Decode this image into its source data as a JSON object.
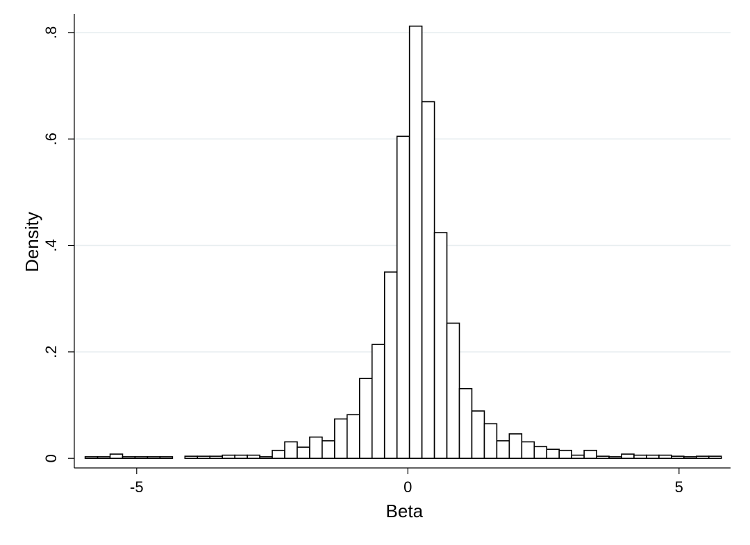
{
  "chart_data": {
    "type": "bar",
    "subtype": "histogram",
    "xlabel": "Beta",
    "ylabel": "Density",
    "xlim": [
      -6.15,
      5.95
    ],
    "ylim": [
      -0.018,
      0.835
    ],
    "x_ticks": [
      {
        "value": -5,
        "label": "-5"
      },
      {
        "value": 0,
        "label": "0"
      },
      {
        "value": 5,
        "label": "5"
      }
    ],
    "y_ticks": [
      {
        "value": 0,
        "label": "0"
      },
      {
        "value": 0.2,
        "label": ".2"
      },
      {
        "value": 0.4,
        "label": ".4"
      },
      {
        "value": 0.6,
        "label": ".6"
      },
      {
        "value": 0.8,
        "label": ".8"
      }
    ],
    "grid": "horizontal",
    "bin_width": 0.23,
    "bars": [
      {
        "x0": -5.95,
        "value": 0.003
      },
      {
        "x0": -5.72,
        "value": 0.003
      },
      {
        "x0": -5.49,
        "value": 0.008
      },
      {
        "x0": -5.26,
        "value": 0.003
      },
      {
        "x0": -5.03,
        "value": 0.003
      },
      {
        "x0": -4.8,
        "value": 0.003
      },
      {
        "x0": -4.57,
        "value": 0.003
      },
      {
        "x0": -4.34,
        "value": 0.0
      },
      {
        "x0": -4.11,
        "value": 0.004
      },
      {
        "x0": -3.88,
        "value": 0.004
      },
      {
        "x0": -3.65,
        "value": 0.004
      },
      {
        "x0": -3.42,
        "value": 0.006
      },
      {
        "x0": -3.19,
        "value": 0.006
      },
      {
        "x0": -2.96,
        "value": 0.006
      },
      {
        "x0": -2.73,
        "value": 0.003
      },
      {
        "x0": -2.5,
        "value": 0.015
      },
      {
        "x0": -2.27,
        "value": 0.031
      },
      {
        "x0": -2.04,
        "value": 0.021
      },
      {
        "x0": -1.81,
        "value": 0.04
      },
      {
        "x0": -1.58,
        "value": 0.033
      },
      {
        "x0": -1.35,
        "value": 0.074
      },
      {
        "x0": -1.12,
        "value": 0.082
      },
      {
        "x0": -0.89,
        "value": 0.15
      },
      {
        "x0": -0.66,
        "value": 0.214
      },
      {
        "x0": -0.43,
        "value": 0.35
      },
      {
        "x0": -0.2,
        "value": 0.605
      },
      {
        "x0": 0.03,
        "value": 0.812
      },
      {
        "x0": 0.26,
        "value": 0.67
      },
      {
        "x0": 0.49,
        "value": 0.424
      },
      {
        "x0": 0.72,
        "value": 0.254
      },
      {
        "x0": 0.95,
        "value": 0.131
      },
      {
        "x0": 1.18,
        "value": 0.089
      },
      {
        "x0": 1.41,
        "value": 0.065
      },
      {
        "x0": 1.64,
        "value": 0.033
      },
      {
        "x0": 1.87,
        "value": 0.046
      },
      {
        "x0": 2.1,
        "value": 0.031
      },
      {
        "x0": 2.33,
        "value": 0.022
      },
      {
        "x0": 2.56,
        "value": 0.017
      },
      {
        "x0": 2.79,
        "value": 0.015
      },
      {
        "x0": 3.02,
        "value": 0.006
      },
      {
        "x0": 3.25,
        "value": 0.015
      },
      {
        "x0": 3.48,
        "value": 0.004
      },
      {
        "x0": 3.71,
        "value": 0.003
      },
      {
        "x0": 3.94,
        "value": 0.008
      },
      {
        "x0": 4.17,
        "value": 0.006
      },
      {
        "x0": 4.4,
        "value": 0.006
      },
      {
        "x0": 4.63,
        "value": 0.006
      },
      {
        "x0": 4.86,
        "value": 0.004
      },
      {
        "x0": 5.09,
        "value": 0.003
      },
      {
        "x0": 5.32,
        "value": 0.004
      },
      {
        "x0": 5.55,
        "value": 0.004
      }
    ]
  }
}
